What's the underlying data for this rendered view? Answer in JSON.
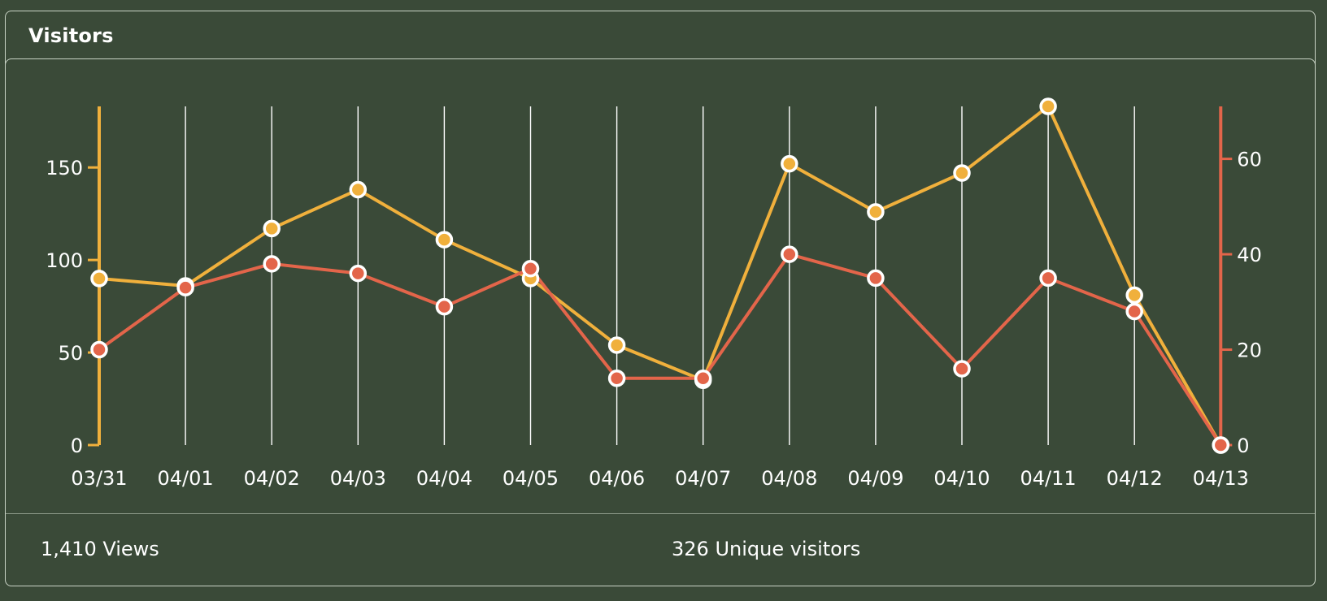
{
  "panel": {
    "title": "Visitors"
  },
  "summary": {
    "views": "1,410 Views",
    "unique_visitors": "326 Unique visitors"
  },
  "colors": {
    "background": "#3a4a38",
    "views_line": "#f0b03c",
    "visitors_line": "#e3654a",
    "gridline": "#ffffff"
  },
  "chart_data": {
    "type": "line",
    "categories": [
      "03/31",
      "04/01",
      "04/02",
      "04/03",
      "04/04",
      "04/05",
      "04/06",
      "04/07",
      "04/08",
      "04/09",
      "04/10",
      "04/11",
      "04/12",
      "04/13"
    ],
    "series": [
      {
        "key": "views",
        "color": "#f0b03c",
        "axis": "left",
        "values": [
          90,
          86,
          117,
          138,
          111,
          90,
          54,
          35,
          152,
          126,
          147,
          183,
          81,
          0
        ]
      },
      {
        "key": "visitors",
        "color": "#e3654a",
        "axis": "right",
        "values": [
          20,
          33,
          38,
          36,
          29,
          37,
          14,
          14,
          40,
          35,
          16,
          35,
          28,
          0
        ]
      }
    ],
    "y_left": {
      "ticks": [
        0,
        50,
        100,
        150
      ],
      "range": [
        0,
        183
      ]
    },
    "y_right": {
      "ticks": [
        0,
        20,
        40,
        60
      ],
      "range": [
        0,
        71
      ]
    },
    "grid": "vertical",
    "legend": "none"
  }
}
